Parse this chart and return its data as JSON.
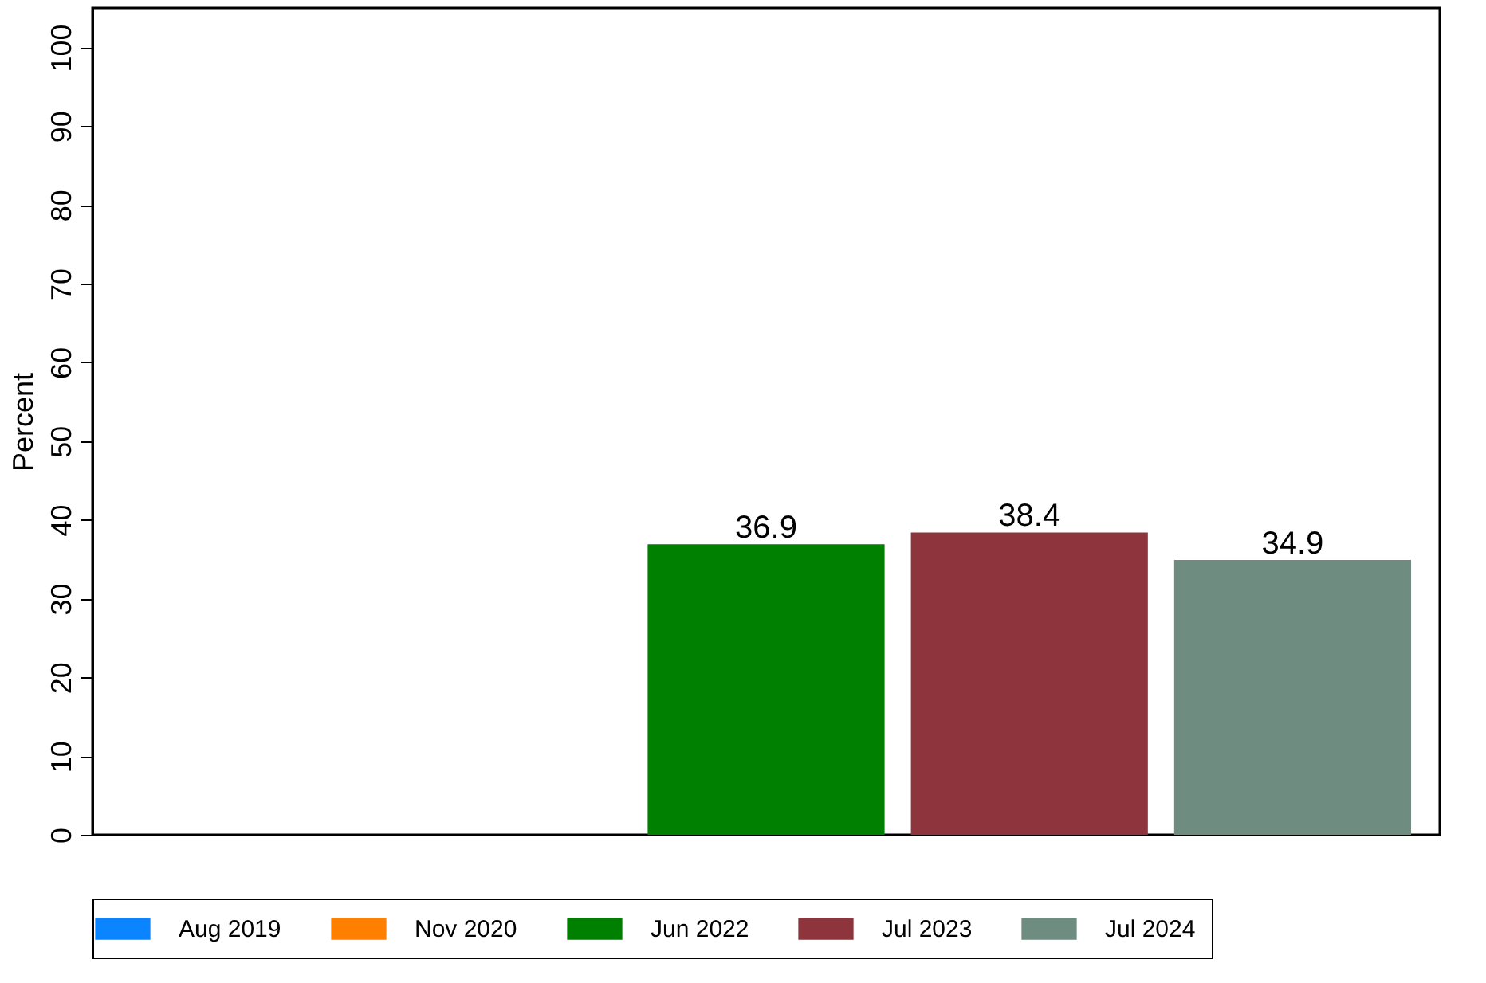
{
  "chart_data": {
    "type": "bar",
    "ylabel": "Percent",
    "categories": [
      null
    ],
    "series": [
      {
        "name": "Aug 2019",
        "color": "#0a84ff",
        "values": [
          null
        ]
      },
      {
        "name": "Nov 2020",
        "color": "#ff7f00",
        "values": [
          null
        ]
      },
      {
        "name": "Jun 2022",
        "color": "#008000",
        "values": [
          36.9
        ]
      },
      {
        "name": "Jul 2023",
        "color": "#8e343c",
        "values": [
          38.4
        ]
      },
      {
        "name": "Jul 2024",
        "color": "#6e8c80",
        "values": [
          34.9
        ]
      }
    ],
    "ylim": [
      0,
      105
    ],
    "yticks": [
      0,
      10,
      20,
      30,
      40,
      50,
      60,
      70,
      80,
      90,
      100
    ],
    "data_labels": true,
    "grid": false,
    "legend": "bottom"
  }
}
